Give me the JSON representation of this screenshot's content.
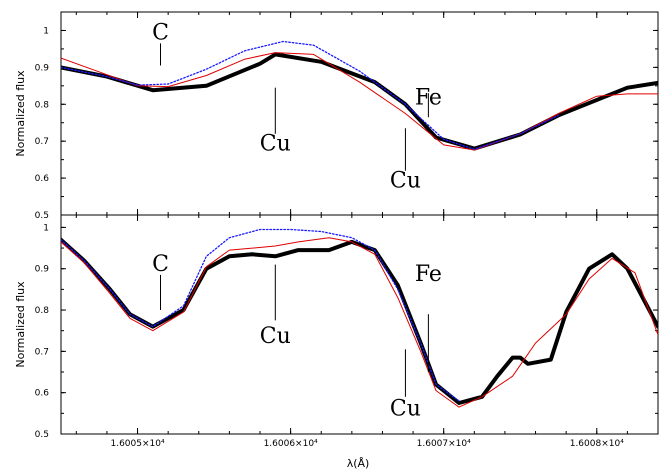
{
  "chart_data": [
    {
      "type": "line",
      "panel": "top",
      "xlabel": "",
      "ylabel": "Normalized flux",
      "xlim": [
        16004.5,
        16008.4
      ],
      "ylim": [
        0.5,
        1.05
      ],
      "y_ticks": [
        0.5,
        0.6,
        0.7,
        0.8,
        0.9,
        1
      ],
      "x_ticks": [],
      "grid": false,
      "series": [
        {
          "style": "thick-black",
          "color": "#000000",
          "x": [
            16004.5,
            16004.8,
            16005.1,
            16005.45,
            16005.8,
            16005.9,
            16006.2,
            16006.55,
            16006.75,
            16006.95,
            16007.2,
            16007.5,
            16007.75,
            16008.2,
            16008.4
          ],
          "y": [
            0.9,
            0.875,
            0.838,
            0.85,
            0.91,
            0.935,
            0.915,
            0.86,
            0.8,
            0.71,
            0.68,
            0.718,
            0.77,
            0.845,
            0.858
          ]
        },
        {
          "style": "thin-red",
          "color": "#e00000",
          "x": [
            16004.5,
            16004.8,
            16005.0,
            16005.2,
            16005.45,
            16005.7,
            16005.9,
            16006.15,
            16006.45,
            16006.75,
            16007.0,
            16007.2,
            16007.5,
            16007.75,
            16008.0,
            16008.2,
            16008.4
          ],
          "y": [
            0.925,
            0.88,
            0.85,
            0.848,
            0.878,
            0.922,
            0.94,
            0.935,
            0.86,
            0.775,
            0.69,
            0.676,
            0.72,
            0.775,
            0.822,
            0.828,
            0.828
          ]
        },
        {
          "style": "dotted-blue",
          "color": "#1a1aff",
          "x": [
            16004.5,
            16004.8,
            16005.0,
            16005.2,
            16005.45,
            16005.7,
            16005.95,
            16006.15,
            16006.45,
            16006.75,
            16007.0,
            16007.2,
            16007.5,
            16007.75
          ],
          "y": [
            0.9,
            0.875,
            0.852,
            0.855,
            0.895,
            0.945,
            0.97,
            0.96,
            0.89,
            0.8,
            0.705,
            0.678,
            0.72,
            0.77
          ]
        }
      ],
      "annotations": [
        {
          "text": "C",
          "x": 16005.15,
          "y": 0.975,
          "line_x": 16005.15,
          "line_y": [
            0.905,
            0.965
          ]
        },
        {
          "text": "Cu",
          "x": 16005.9,
          "y": 0.675,
          "line_x": 16005.9,
          "line_y": [
            0.72,
            0.845
          ]
        },
        {
          "text": "Cu",
          "x": 16006.75,
          "y": 0.575,
          "line_x": 16006.75,
          "line_y": [
            0.62,
            0.735
          ]
        },
        {
          "text": "Fe",
          "x": 16006.9,
          "y": 0.8,
          "line_x": 16006.9,
          "line_y": [
            0.765,
            0.83
          ]
        }
      ]
    },
    {
      "type": "line",
      "panel": "bottom",
      "xlabel": "λ(Å)",
      "ylabel": "Normalized flux",
      "xlim": [
        16004.5,
        16008.4
      ],
      "ylim": [
        0.5,
        1.03
      ],
      "y_ticks": [
        0.5,
        0.6,
        0.7,
        0.8,
        0.9,
        1
      ],
      "x_ticks": [
        16005,
        16006,
        16007,
        16008
      ],
      "x_tick_labels": [
        "1.6005×10⁴",
        "1.6006×10⁴",
        "1.6007×10⁴",
        "1.6008×10⁴"
      ],
      "grid": false,
      "series": [
        {
          "style": "thick-black",
          "color": "#000000",
          "x": [
            16004.5,
            16004.65,
            16004.82,
            16004.95,
            16005.1,
            16005.3,
            16005.45,
            16005.6,
            16005.75,
            16005.9,
            16006.05,
            16006.25,
            16006.4,
            16006.55,
            16006.7,
            16006.85,
            16006.95,
            16007.1,
            16007.25,
            16007.35,
            16007.45,
            16007.5,
            16007.55,
            16007.7,
            16007.8,
            16007.95,
            16008.1,
            16008.2,
            16008.4
          ],
          "y": [
            0.97,
            0.92,
            0.85,
            0.79,
            0.76,
            0.8,
            0.9,
            0.93,
            0.935,
            0.93,
            0.945,
            0.945,
            0.965,
            0.945,
            0.86,
            0.72,
            0.62,
            0.575,
            0.59,
            0.64,
            0.685,
            0.685,
            0.67,
            0.68,
            0.795,
            0.9,
            0.935,
            0.9,
            0.76
          ]
        },
        {
          "style": "thin-red",
          "color": "#e00000",
          "x": [
            16004.5,
            16004.65,
            16004.82,
            16004.95,
            16005.1,
            16005.3,
            16005.45,
            16005.6,
            16005.75,
            16005.9,
            16006.05,
            16006.25,
            16006.4,
            16006.55,
            16006.7,
            16006.85,
            16006.95,
            16007.1,
            16007.25,
            16007.45,
            16007.6,
            16007.8,
            16007.95,
            16008.1,
            16008.25,
            16008.4
          ],
          "y": [
            0.965,
            0.915,
            0.84,
            0.78,
            0.75,
            0.795,
            0.905,
            0.945,
            0.95,
            0.955,
            0.965,
            0.975,
            0.965,
            0.935,
            0.83,
            0.7,
            0.605,
            0.565,
            0.59,
            0.64,
            0.72,
            0.79,
            0.875,
            0.925,
            0.89,
            0.74
          ]
        },
        {
          "style": "dotted-blue",
          "color": "#1a1aff",
          "x": [
            16004.5,
            16004.65,
            16004.82,
            16004.95,
            16005.1,
            16005.3,
            16005.45,
            16005.6,
            16005.8,
            16006.0,
            16006.2,
            16006.4,
            16006.55,
            16006.7,
            16006.85,
            16006.95,
            16007.1
          ],
          "y": [
            0.97,
            0.92,
            0.85,
            0.79,
            0.76,
            0.81,
            0.93,
            0.975,
            0.995,
            0.995,
            0.99,
            0.975,
            0.945,
            0.85,
            0.72,
            0.62,
            0.58
          ]
        }
      ],
      "annotations": [
        {
          "text": "C",
          "x": 16005.15,
          "y": 0.895,
          "line_x": 16005.15,
          "line_y": [
            0.8,
            0.885
          ]
        },
        {
          "text": "Cu",
          "x": 16005.9,
          "y": 0.72,
          "line_x": 16005.9,
          "line_y": [
            0.775,
            0.91
          ]
        },
        {
          "text": "Cu",
          "x": 16006.75,
          "y": 0.545,
          "line_x": 16006.75,
          "line_y": [
            0.59,
            0.705
          ]
        },
        {
          "text": "Fe",
          "x": 16006.9,
          "y": 0.87,
          "line_x": 16006.9,
          "line_y": [
            0.65,
            0.79
          ]
        }
      ]
    }
  ]
}
